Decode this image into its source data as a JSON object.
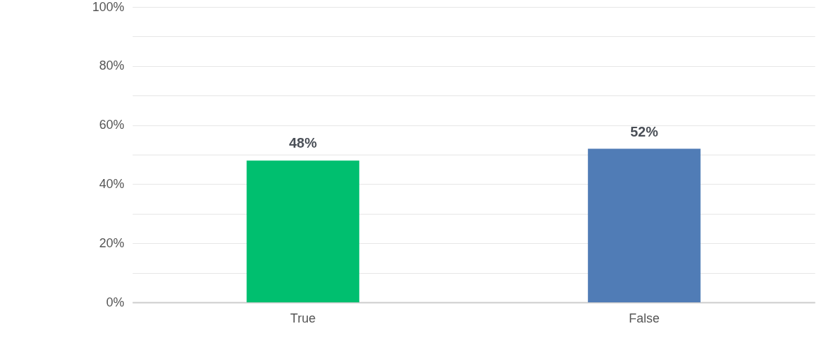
{
  "chart_data": {
    "type": "bar",
    "categories": [
      "True",
      "False"
    ],
    "values": [
      48,
      52
    ],
    "colors": [
      "#00bf6f",
      "#507cb6"
    ],
    "value_labels": [
      "48%",
      "52%"
    ],
    "ylim": [
      0,
      100
    ],
    "yticks": [
      {
        "value": 0,
        "label": "0%"
      },
      {
        "value": 10,
        "label": null
      },
      {
        "value": 20,
        "label": "20%"
      },
      {
        "value": 30,
        "label": null
      },
      {
        "value": 40,
        "label": "40%"
      },
      {
        "value": 50,
        "label": null
      },
      {
        "value": 60,
        "label": "60%"
      },
      {
        "value": 70,
        "label": null
      },
      {
        "value": 80,
        "label": "80%"
      },
      {
        "value": 90,
        "label": null
      },
      {
        "value": 100,
        "label": "100%"
      }
    ],
    "grid": true
  }
}
